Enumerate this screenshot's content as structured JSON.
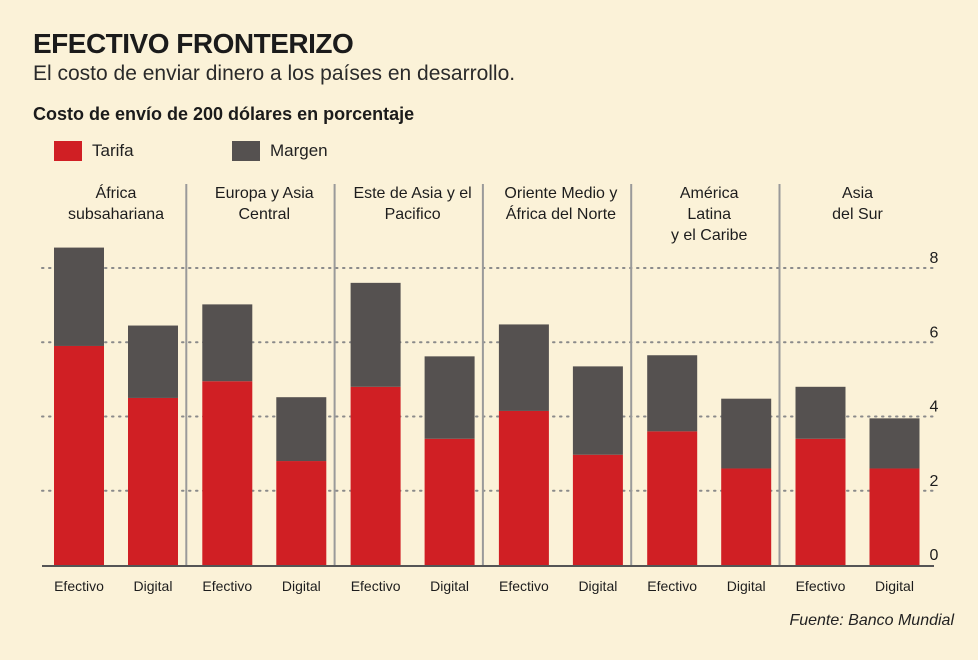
{
  "header": {
    "title": "EFECTIVO FRONTERIZO",
    "subtitle": "El costo de enviar dinero a los países en desarrollo."
  },
  "source": "Fuente: Banco Mundial",
  "colors": {
    "background": "#fbf2d8",
    "tarifa": "#d01f24",
    "margen": "#555150",
    "divider": "#9a9a9a",
    "grid": "#8a8a8a"
  },
  "chart_data": {
    "type": "bar",
    "stacked": true,
    "title": "Costo de envío de 200 dólares en porcentaje",
    "legend": {
      "position": "top-left",
      "entries": [
        "Tarifa",
        "Margen"
      ]
    },
    "ylim": [
      0,
      8
    ],
    "yticks": [
      0,
      2,
      4,
      6,
      8
    ],
    "grid": true,
    "groups": [
      {
        "name": "África subsahariana",
        "label_lines": [
          "África",
          "subsahariana"
        ]
      },
      {
        "name": "Europa y Asia Central",
        "label_lines": [
          "Europa y Asia",
          "Central"
        ]
      },
      {
        "name": "Este de Asia y el Pacifico",
        "label_lines": [
          "Este de Asia y el",
          "Pacifico"
        ]
      },
      {
        "name": "Oriente Medio y África del Norte",
        "label_lines": [
          "Oriente Medio y",
          "África del Norte"
        ]
      },
      {
        "name": "América Latina y el Caribe",
        "label_lines": [
          "América",
          "Latina",
          "y el Caribe"
        ]
      },
      {
        "name": "Asia del Sur",
        "label_lines": [
          "Asia",
          "del Sur"
        ]
      }
    ],
    "categories": [
      "Efectivo",
      "Digital"
    ],
    "series": [
      {
        "name": "Tarifa",
        "values": [
          [
            5.9,
            4.5
          ],
          [
            4.95,
            2.8
          ],
          [
            4.8,
            3.4
          ],
          [
            4.15,
            2.97
          ],
          [
            3.6,
            2.6
          ],
          [
            3.4,
            2.6
          ]
        ]
      },
      {
        "name": "Margen",
        "values": [
          [
            2.65,
            1.95
          ],
          [
            2.07,
            1.72
          ],
          [
            2.8,
            2.22
          ],
          [
            2.33,
            2.38
          ],
          [
            2.05,
            1.88
          ],
          [
            1.4,
            1.35
          ]
        ]
      }
    ]
  }
}
